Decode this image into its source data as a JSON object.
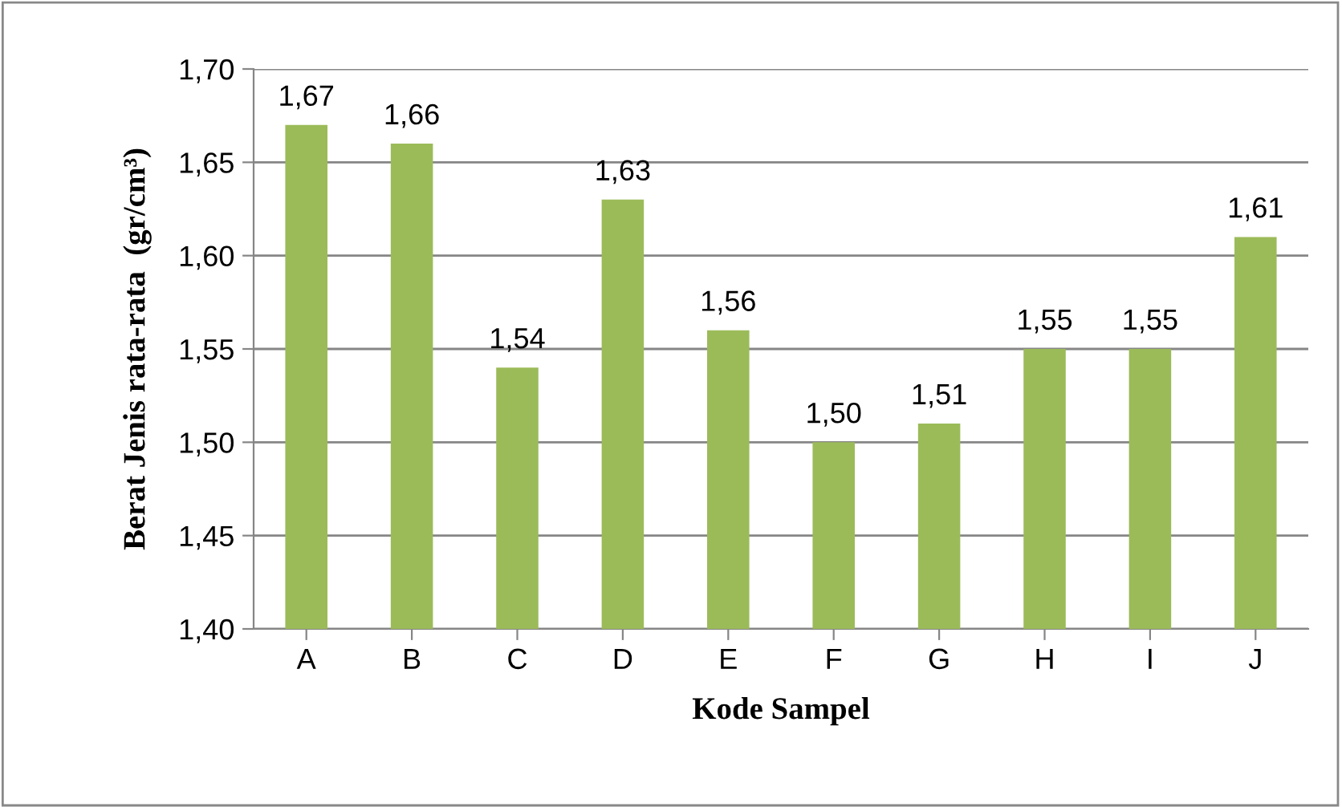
{
  "chart_data": {
    "type": "bar",
    "xlabel": "Kode Sampel",
    "ylabel": "Berat Jenis rata-rata  (gr/cm³)",
    "categories": [
      "A",
      "B",
      "C",
      "D",
      "E",
      "F",
      "G",
      "H",
      "I",
      "J"
    ],
    "values": [
      1.67,
      1.66,
      1.54,
      1.63,
      1.56,
      1.5,
      1.51,
      1.55,
      1.55,
      1.61
    ],
    "value_labels": [
      "1,67",
      "1,66",
      "1,54",
      "1,63",
      "1,56",
      "1,50",
      "1,51",
      "1,55",
      "1,55",
      "1,61"
    ],
    "color": "#9bbb59",
    "ylim": [
      1.4,
      1.7
    ],
    "yticks": [
      {
        "value": 1.4,
        "label": "1,40"
      },
      {
        "value": 1.45,
        "label": "1,45"
      },
      {
        "value": 1.5,
        "label": "1,50"
      },
      {
        "value": 1.55,
        "label": "1,55"
      },
      {
        "value": 1.6,
        "label": "1,60"
      },
      {
        "value": 1.65,
        "label": "1,65"
      },
      {
        "value": 1.7,
        "label": "1,70"
      }
    ],
    "grid": "y",
    "legend": false
  }
}
